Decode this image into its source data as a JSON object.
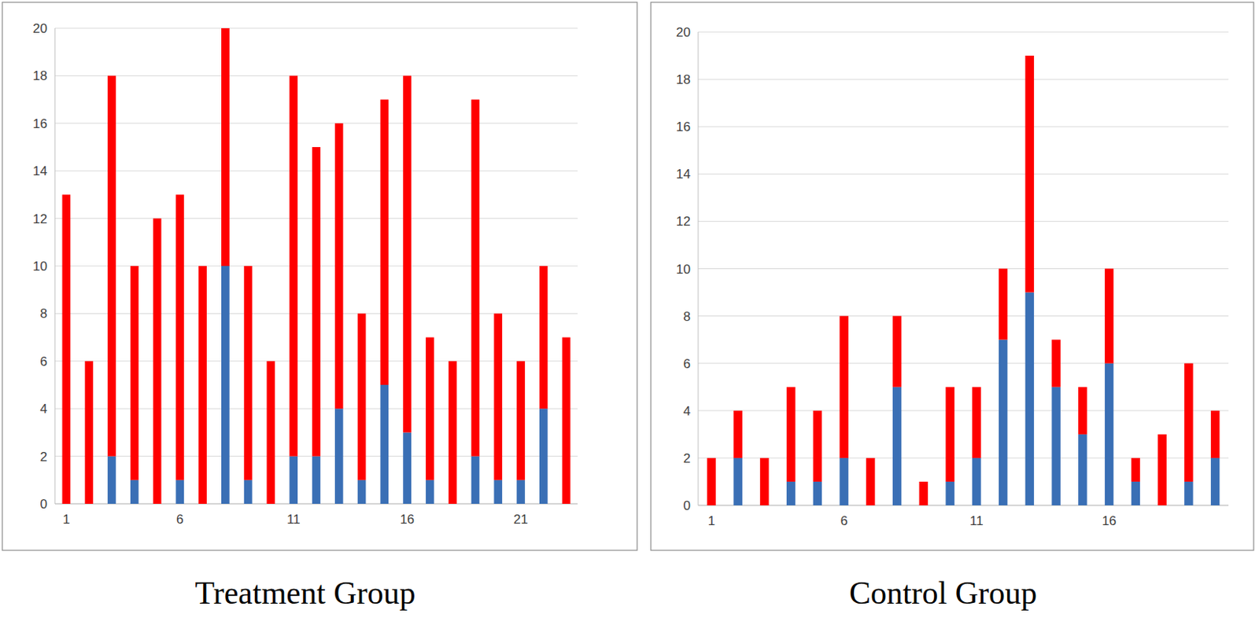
{
  "chart_data": [
    {
      "type": "bar",
      "title": "Treatment Group",
      "stacked": true,
      "grid": true,
      "categories": [
        "1",
        null,
        null,
        null,
        null,
        "6",
        null,
        null,
        null,
        null,
        "11",
        null,
        null,
        null,
        null,
        "16",
        null,
        null,
        null,
        null,
        "21",
        null,
        null
      ],
      "series": [
        {
          "color": "#3a6fb5",
          "values": [
            0,
            0,
            2,
            1,
            0,
            1,
            0,
            10,
            1,
            0,
            2,
            2,
            4,
            1,
            5,
            3,
            1,
            0,
            2,
            1,
            1,
            4,
            0
          ]
        },
        {
          "color": "#ff0000",
          "values": [
            13,
            6,
            16,
            9,
            12,
            12,
            10,
            10,
            9,
            6,
            16,
            13,
            12,
            7,
            12,
            15,
            6,
            6,
            15,
            7,
            5,
            6,
            7
          ]
        }
      ],
      "ylim": [
        0,
        20
      ],
      "yticks": [
        0,
        2,
        4,
        6,
        8,
        10,
        12,
        14,
        16,
        18,
        20
      ]
    },
    {
      "type": "bar",
      "title": "Control Group",
      "stacked": true,
      "grid": true,
      "categories": [
        "1",
        null,
        null,
        null,
        null,
        "6",
        null,
        null,
        null,
        null,
        "11",
        null,
        null,
        null,
        null,
        "16",
        null,
        null,
        null,
        null
      ],
      "series": [
        {
          "color": "#3a6fb5",
          "values": [
            0,
            2,
            0,
            1,
            1,
            2,
            0,
            5,
            0,
            1,
            2,
            7,
            9,
            5,
            3,
            6,
            1,
            0,
            1,
            2
          ]
        },
        {
          "color": "#ff0000",
          "values": [
            2,
            2,
            2,
            4,
            3,
            6,
            2,
            3,
            1,
            4,
            3,
            3,
            10,
            2,
            2,
            4,
            1,
            3,
            5,
            2
          ]
        }
      ],
      "ylim": [
        0,
        20
      ],
      "yticks": [
        0,
        2,
        4,
        6,
        8,
        10,
        12,
        14,
        16,
        18,
        20
      ]
    }
  ]
}
